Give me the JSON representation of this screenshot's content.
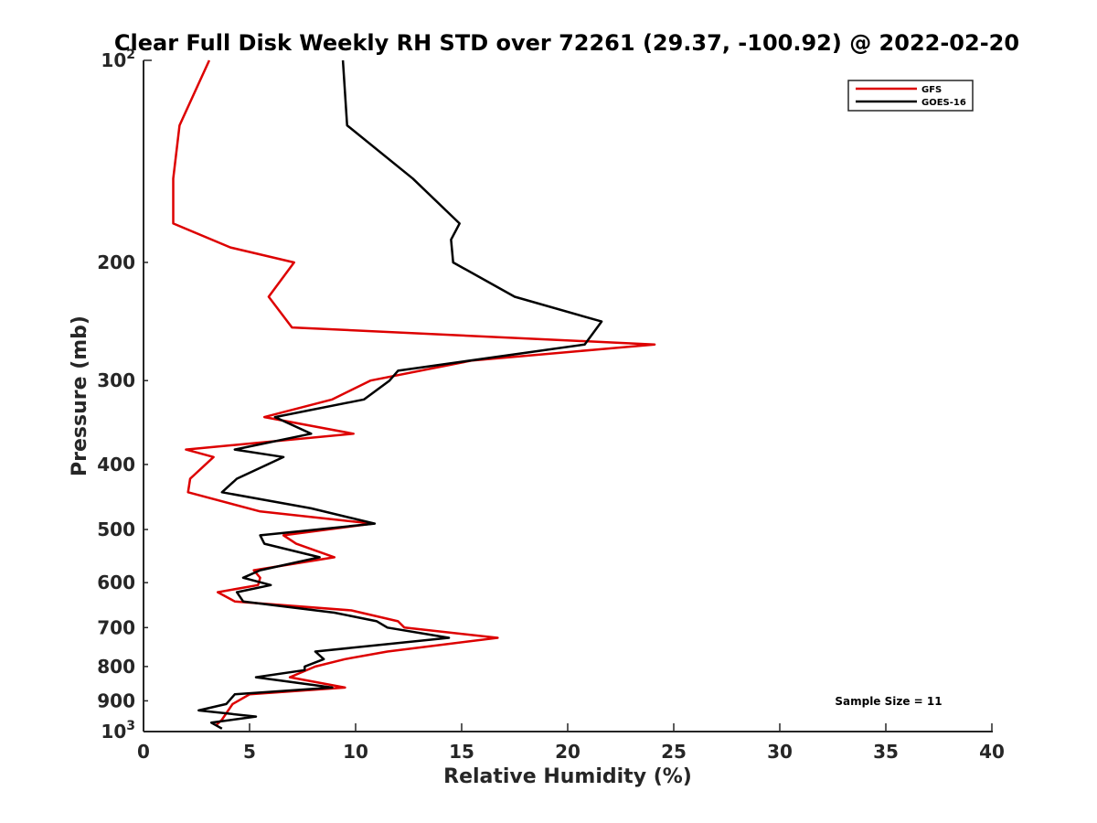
{
  "chart_data": {
    "type": "line",
    "title": "Clear Full Disk Weekly RH STD over 72261 (29.37, -100.92) @ 2022-02-20",
    "xlabel": "Relative Humidity (%)",
    "ylabel": "Pressure (mb)",
    "xlim": [
      0,
      40
    ],
    "ylim": [
      1000,
      100
    ],
    "yscale": "log",
    "y_reversed": true,
    "xticks": [
      0,
      5,
      10,
      15,
      20,
      25,
      30,
      35,
      40
    ],
    "xtick_labels": [
      "0",
      "5",
      "10",
      "15",
      "20",
      "25",
      "30",
      "35",
      "40"
    ],
    "yticks": [
      100,
      200,
      300,
      400,
      500,
      600,
      700,
      800,
      900,
      1000
    ],
    "ytick_labels": [
      {
        "base": "10",
        "exp": "2"
      },
      {
        "base": "200"
      },
      {
        "base": "300"
      },
      {
        "base": "400"
      },
      {
        "base": "500"
      },
      {
        "base": "600"
      },
      {
        "base": "700"
      },
      {
        "base": "800"
      },
      {
        "base": "900"
      },
      {
        "base": "10",
        "exp": "3"
      }
    ],
    "grid": false,
    "legend_position": "top-right",
    "annotation": "Sample Size = 11",
    "series": [
      {
        "name": "GFS",
        "color": "#dd0000",
        "points": [
          [
            3.1,
            100
          ],
          [
            1.7,
            125
          ],
          [
            1.4,
            150
          ],
          [
            1.4,
            175
          ],
          [
            4.1,
            190
          ],
          [
            7.1,
            200
          ],
          [
            5.9,
            225
          ],
          [
            7.0,
            250
          ],
          [
            24.1,
            265
          ],
          [
            15.5,
            280
          ],
          [
            10.7,
            300
          ],
          [
            8.9,
            320
          ],
          [
            5.7,
            340
          ],
          [
            9.9,
            360
          ],
          [
            2.0,
            380
          ],
          [
            3.3,
            390
          ],
          [
            2.2,
            420
          ],
          [
            2.1,
            440
          ],
          [
            5.5,
            470
          ],
          [
            10.8,
            490
          ],
          [
            6.6,
            510
          ],
          [
            7.2,
            525
          ],
          [
            9.0,
            550
          ],
          [
            5.2,
            575
          ],
          [
            5.5,
            590
          ],
          [
            5.4,
            605
          ],
          [
            3.5,
            620
          ],
          [
            4.3,
            640
          ],
          [
            9.8,
            660
          ],
          [
            12.0,
            685
          ],
          [
            12.3,
            700
          ],
          [
            16.7,
            725
          ],
          [
            11.5,
            760
          ],
          [
            9.5,
            780
          ],
          [
            8.1,
            800
          ],
          [
            6.9,
            830
          ],
          [
            9.5,
            860
          ],
          [
            5.0,
            880
          ],
          [
            4.2,
            910
          ],
          [
            3.7,
            960
          ],
          [
            3.4,
            980
          ]
        ]
      },
      {
        "name": "GOES-16",
        "color": "#000000",
        "points": [
          [
            9.4,
            100
          ],
          [
            9.6,
            125
          ],
          [
            12.7,
            150
          ],
          [
            14.9,
            175
          ],
          [
            14.5,
            185
          ],
          [
            14.6,
            200
          ],
          [
            17.5,
            225
          ],
          [
            21.6,
            245
          ],
          [
            20.8,
            265
          ],
          [
            12.0,
            290
          ],
          [
            11.6,
            300
          ],
          [
            10.4,
            320
          ],
          [
            6.2,
            340
          ],
          [
            7.9,
            360
          ],
          [
            4.3,
            380
          ],
          [
            6.6,
            390
          ],
          [
            4.4,
            420
          ],
          [
            3.7,
            440
          ],
          [
            7.9,
            465
          ],
          [
            10.9,
            490
          ],
          [
            5.5,
            510
          ],
          [
            5.7,
            525
          ],
          [
            8.3,
            550
          ],
          [
            5.5,
            575
          ],
          [
            4.7,
            590
          ],
          [
            6.0,
            605
          ],
          [
            4.4,
            620
          ],
          [
            4.7,
            640
          ],
          [
            9.0,
            665
          ],
          [
            11.0,
            685
          ],
          [
            11.5,
            700
          ],
          [
            14.4,
            725
          ],
          [
            8.1,
            760
          ],
          [
            8.5,
            780
          ],
          [
            7.6,
            800
          ],
          [
            7.6,
            810
          ],
          [
            5.3,
            830
          ],
          [
            8.9,
            860
          ],
          [
            4.3,
            880
          ],
          [
            3.9,
            910
          ],
          [
            2.6,
            930
          ],
          [
            5.3,
            950
          ],
          [
            3.2,
            970
          ],
          [
            3.7,
            990
          ]
        ]
      }
    ]
  }
}
